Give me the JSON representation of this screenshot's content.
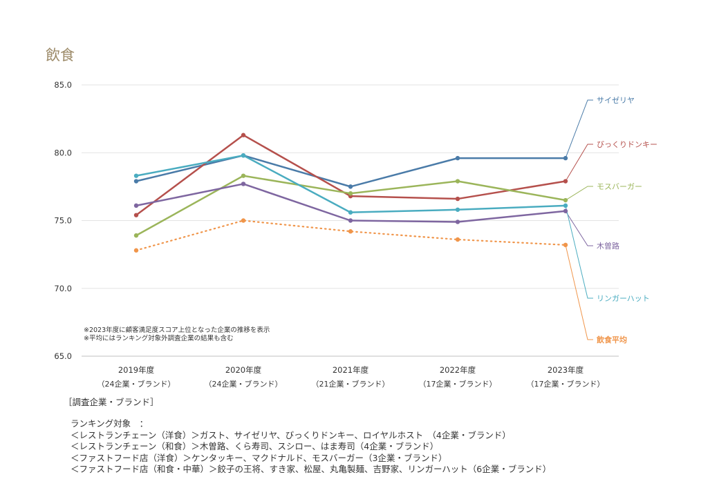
{
  "page": {
    "title": "飲食"
  },
  "chart_data": {
    "type": "line",
    "title": "飲食",
    "categories": [
      "2019年度",
      "2020年度",
      "2021年度",
      "2022年度",
      "2023年度"
    ],
    "category_sublabels": [
      "（24企業・ブランド）",
      "（24企業・ブランド）",
      "（21企業・ブランド）",
      "（17企業・ブランド）",
      "（17企業・ブランド）"
    ],
    "ylim": [
      65.0,
      85.0
    ],
    "yticks": [
      "85.0",
      "80.0",
      "75.0",
      "70.0",
      "65.0"
    ],
    "series": [
      {
        "name": "サイゼリヤ",
        "color": "#4a7ba8",
        "style": "solid",
        "values": [
          77.9,
          79.8,
          77.5,
          79.6,
          79.6
        ]
      },
      {
        "name": "びっくりドンキー",
        "color": "#b5504c",
        "style": "solid",
        "values": [
          75.4,
          81.3,
          76.8,
          76.6,
          77.9
        ]
      },
      {
        "name": "モスバーガー",
        "color": "#9bb55a",
        "style": "solid",
        "values": [
          73.9,
          78.3,
          77.0,
          77.9,
          76.5
        ]
      },
      {
        "name": "木曽路",
        "color": "#7e66a0",
        "style": "solid",
        "values": [
          76.1,
          77.7,
          75.0,
          74.9,
          75.7
        ]
      },
      {
        "name": "リンガーハット",
        "color": "#4aacc0",
        "style": "solid",
        "values": [
          78.3,
          79.8,
          75.6,
          75.8,
          76.1
        ]
      },
      {
        "name": "飲食平均",
        "color": "#f0954a",
        "style": "dotted",
        "values": [
          72.8,
          75.0,
          74.2,
          73.6,
          73.2
        ]
      }
    ],
    "notes": [
      "※2023年度に顧客満足度スコア上位となった企業の推移を表示",
      "※平均にはランキング対象外調査企業の結果も含む"
    ]
  },
  "survey": {
    "heading": "［調査企業・ブランド］",
    "ranking_lines": [
      "ランキング対象　：",
      "＜レストランチェーン（洋食）＞ガスト、サイゼリヤ、びっくりドンキー、ロイヤルホスト　（4企業・ブランド）",
      "＜レストランチェーン（和食）＞木曽路、くら寿司、スシロー、はま寿司（4企業・ブランド）",
      "＜ファストフード店（洋食）＞ケンタッキー、マクドナルド、モスバーガー（3企業・ブランド）",
      "＜ファストフード店（和食・中華）＞餃子の王将、すき家、松屋、丸亀製麺、吉野家、リンガーハット（6企業・ブランド）"
    ]
  }
}
